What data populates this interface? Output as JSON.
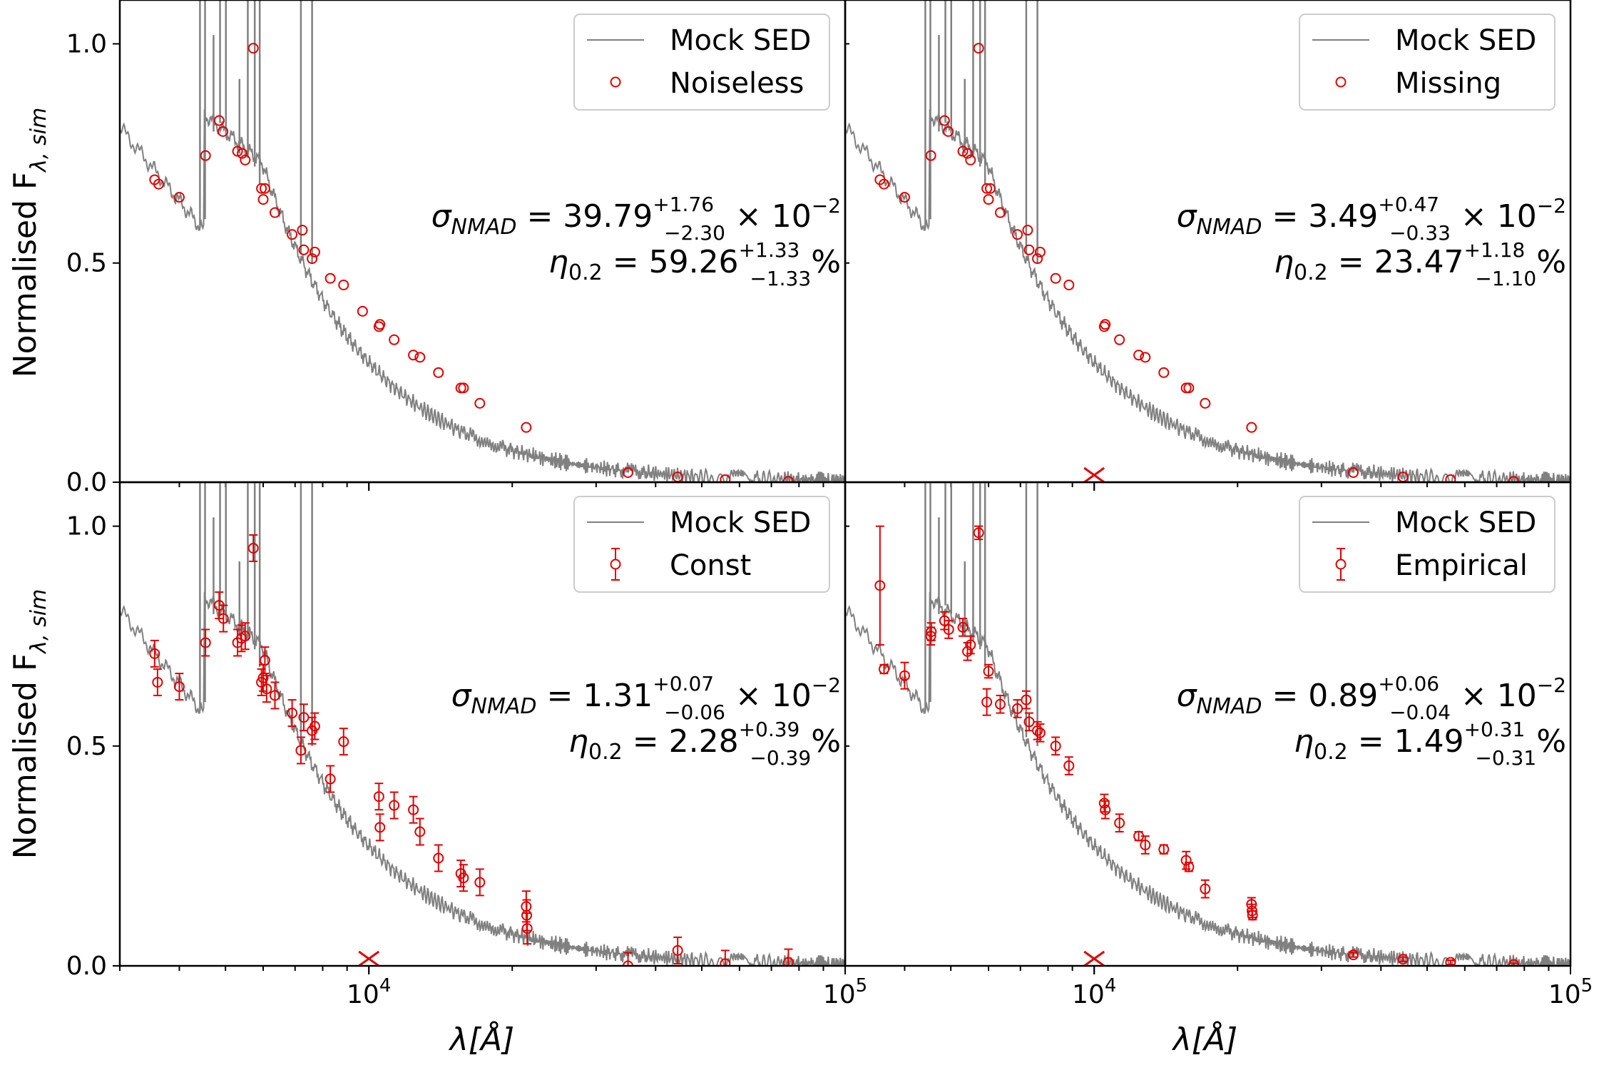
{
  "figure": {
    "ylabel_text": "Normalised F",
    "ylabel_sub": "λ, sim",
    "xlabel_text": "λ[Å]"
  },
  "colors": {
    "sed_line": "#808080",
    "points": "#e00000",
    "frame": "#000000",
    "legend_border": "#cccccc"
  },
  "chart_data": [
    {
      "type": "scatter",
      "panel": "top-left",
      "legend": [
        "Mock SED",
        "Noiseless"
      ],
      "legend_placement": "top-right",
      "errorbars": false,
      "xscale": "log",
      "xlim": [
        3000,
        100000
      ],
      "ylim": [
        0.0,
        1.1
      ],
      "yticks": [
        "0.0",
        "0.5",
        "1.0"
      ],
      "xticks": [],
      "stat": {
        "sigma_label": "σ",
        "sigma_sub": "NMAD",
        "sigma_val": "39.79",
        "sigma_sup": "+1.76",
        "sigma_sub2": "−2.30",
        "sigma_tail": "× 10",
        "sigma_exp": "−2",
        "eta_label": "η",
        "eta_sub": "0.2",
        "eta_val": "59.26",
        "eta_sup": "+1.33",
        "eta_sub2": "−1.33",
        "eta_tail": "%"
      },
      "missing_marker_x": null,
      "points": [
        {
          "x": 3550,
          "y": 0.69
        },
        {
          "x": 3620,
          "y": 0.68
        },
        {
          "x": 4000,
          "y": 0.65
        },
        {
          "x": 4540,
          "y": 0.745
        },
        {
          "x": 4850,
          "y": 0.825
        },
        {
          "x": 4940,
          "y": 0.8
        },
        {
          "x": 5300,
          "y": 0.755
        },
        {
          "x": 5420,
          "y": 0.75
        },
        {
          "x": 5500,
          "y": 0.735
        },
        {
          "x": 5720,
          "y": 0.99
        },
        {
          "x": 5950,
          "y": 0.67
        },
        {
          "x": 6000,
          "y": 0.645
        },
        {
          "x": 6050,
          "y": 0.67
        },
        {
          "x": 6350,
          "y": 0.615
        },
        {
          "x": 6900,
          "y": 0.565
        },
        {
          "x": 7250,
          "y": 0.575
        },
        {
          "x": 7300,
          "y": 0.53
        },
        {
          "x": 7600,
          "y": 0.51
        },
        {
          "x": 7700,
          "y": 0.525
        },
        {
          "x": 8300,
          "y": 0.465
        },
        {
          "x": 8850,
          "y": 0.45
        },
        {
          "x": 9700,
          "y": 0.39
        },
        {
          "x": 10500,
          "y": 0.355
        },
        {
          "x": 10550,
          "y": 0.36
        },
        {
          "x": 11300,
          "y": 0.325
        },
        {
          "x": 12400,
          "y": 0.29
        },
        {
          "x": 12800,
          "y": 0.285
        },
        {
          "x": 14000,
          "y": 0.25
        },
        {
          "x": 15600,
          "y": 0.215
        },
        {
          "x": 15800,
          "y": 0.215
        },
        {
          "x": 17100,
          "y": 0.18
        },
        {
          "x": 21400,
          "y": 0.125
        },
        {
          "x": 35000,
          "y": 0.022
        },
        {
          "x": 44500,
          "y": 0.012
        },
        {
          "x": 56000,
          "y": 0.006
        },
        {
          "x": 76000,
          "y": 0.002
        }
      ]
    },
    {
      "type": "scatter",
      "panel": "top-right",
      "legend": [
        "Mock SED",
        "Missing"
      ],
      "legend_placement": "top-right",
      "errorbars": false,
      "xscale": "log",
      "xlim": [
        3000,
        100000
      ],
      "ylim": [
        0.0,
        1.1
      ],
      "yticks": [],
      "xticks": [],
      "stat": {
        "sigma_label": "σ",
        "sigma_sub": "NMAD",
        "sigma_val": "3.49",
        "sigma_sup": "+0.47",
        "sigma_sub2": "−0.33",
        "sigma_tail": "× 10",
        "sigma_exp": "−2",
        "eta_label": "η",
        "eta_sub": "0.2",
        "eta_val": "23.47",
        "eta_sup": "+1.18",
        "eta_sub2": "−1.10",
        "eta_tail": "%"
      },
      "missing_marker_x": 10000,
      "points": [
        {
          "x": 3550,
          "y": 0.69
        },
        {
          "x": 3620,
          "y": 0.68
        },
        {
          "x": 4000,
          "y": 0.65
        },
        {
          "x": 4540,
          "y": 0.745
        },
        {
          "x": 4850,
          "y": 0.825
        },
        {
          "x": 4940,
          "y": 0.8
        },
        {
          "x": 5300,
          "y": 0.755
        },
        {
          "x": 5420,
          "y": 0.75
        },
        {
          "x": 5500,
          "y": 0.735
        },
        {
          "x": 5720,
          "y": 0.99
        },
        {
          "x": 5950,
          "y": 0.67
        },
        {
          "x": 6000,
          "y": 0.645
        },
        {
          "x": 6050,
          "y": 0.67
        },
        {
          "x": 6350,
          "y": 0.615
        },
        {
          "x": 6900,
          "y": 0.565
        },
        {
          "x": 7250,
          "y": 0.575
        },
        {
          "x": 7300,
          "y": 0.53
        },
        {
          "x": 7600,
          "y": 0.51
        },
        {
          "x": 7700,
          "y": 0.525
        },
        {
          "x": 8300,
          "y": 0.465
        },
        {
          "x": 8850,
          "y": 0.45
        },
        {
          "x": 10500,
          "y": 0.355
        },
        {
          "x": 10550,
          "y": 0.36
        },
        {
          "x": 11300,
          "y": 0.325
        },
        {
          "x": 12400,
          "y": 0.29
        },
        {
          "x": 12800,
          "y": 0.285
        },
        {
          "x": 14000,
          "y": 0.25
        },
        {
          "x": 15600,
          "y": 0.215
        },
        {
          "x": 15800,
          "y": 0.215
        },
        {
          "x": 17100,
          "y": 0.18
        },
        {
          "x": 21400,
          "y": 0.125
        },
        {
          "x": 35000,
          "y": 0.022
        },
        {
          "x": 44500,
          "y": 0.012
        },
        {
          "x": 56000,
          "y": 0.006
        },
        {
          "x": 76000,
          "y": 0.002
        }
      ]
    },
    {
      "type": "scatter",
      "panel": "bottom-left",
      "legend": [
        "Mock SED",
        "Const"
      ],
      "legend_placement": "top-right",
      "errorbars": true,
      "xscale": "log",
      "xlim": [
        3000,
        100000
      ],
      "ylim": [
        0.0,
        1.1
      ],
      "yticks": [
        "0.0",
        "0.5",
        "1.0"
      ],
      "xticks": [
        {
          "v": 10000,
          "base": "10",
          "exp": "4"
        },
        {
          "v": 100000,
          "base": "10",
          "exp": "5"
        }
      ],
      "stat": {
        "sigma_label": "σ",
        "sigma_sub": "NMAD",
        "sigma_val": "1.31",
        "sigma_sup": "+0.07",
        "sigma_sub2": "−0.06",
        "sigma_tail": "× 10",
        "sigma_exp": "−2",
        "eta_label": "η",
        "eta_sub": "0.2",
        "eta_val": "2.28",
        "eta_sup": "+0.39",
        "eta_sub2": "−0.39",
        "eta_tail": "%"
      },
      "missing_marker_x": 10000,
      "points": [
        {
          "x": 3550,
          "y": 0.71,
          "e": 0.03
        },
        {
          "x": 3600,
          "y": 0.645,
          "e": 0.03
        },
        {
          "x": 4000,
          "y": 0.635,
          "e": 0.03
        },
        {
          "x": 4540,
          "y": 0.735,
          "e": 0.03
        },
        {
          "x": 4850,
          "y": 0.82,
          "e": 0.03
        },
        {
          "x": 4950,
          "y": 0.79,
          "e": 0.03
        },
        {
          "x": 5300,
          "y": 0.735,
          "e": 0.03
        },
        {
          "x": 5400,
          "y": 0.745,
          "e": 0.03
        },
        {
          "x": 5500,
          "y": 0.75,
          "e": 0.03
        },
        {
          "x": 5720,
          "y": 0.95,
          "e": 0.03
        },
        {
          "x": 5950,
          "y": 0.645,
          "e": 0.03
        },
        {
          "x": 6000,
          "y": 0.655,
          "e": 0.03
        },
        {
          "x": 6050,
          "y": 0.695,
          "e": 0.03
        },
        {
          "x": 6100,
          "y": 0.63,
          "e": 0.03
        },
        {
          "x": 6350,
          "y": 0.615,
          "e": 0.03
        },
        {
          "x": 6900,
          "y": 0.575,
          "e": 0.03
        },
        {
          "x": 7200,
          "y": 0.49,
          "e": 0.03
        },
        {
          "x": 7300,
          "y": 0.565,
          "e": 0.03
        },
        {
          "x": 7600,
          "y": 0.535,
          "e": 0.03
        },
        {
          "x": 7700,
          "y": 0.545,
          "e": 0.03
        },
        {
          "x": 8300,
          "y": 0.425,
          "e": 0.03
        },
        {
          "x": 8850,
          "y": 0.51,
          "e": 0.03
        },
        {
          "x": 10500,
          "y": 0.385,
          "e": 0.03
        },
        {
          "x": 10550,
          "y": 0.315,
          "e": 0.03
        },
        {
          "x": 11300,
          "y": 0.365,
          "e": 0.03
        },
        {
          "x": 12400,
          "y": 0.355,
          "e": 0.03
        },
        {
          "x": 12800,
          "y": 0.305,
          "e": 0.03
        },
        {
          "x": 14000,
          "y": 0.245,
          "e": 0.03
        },
        {
          "x": 15600,
          "y": 0.21,
          "e": 0.03
        },
        {
          "x": 15800,
          "y": 0.2,
          "e": 0.03
        },
        {
          "x": 17100,
          "y": 0.19,
          "e": 0.03
        },
        {
          "x": 21400,
          "y": 0.135,
          "e": 0.035
        },
        {
          "x": 21450,
          "y": 0.115,
          "e": 0.035
        },
        {
          "x": 21500,
          "y": 0.085,
          "e": 0.035
        },
        {
          "x": 35000,
          "y": 0.0,
          "e": 0.03
        },
        {
          "x": 44500,
          "y": 0.035,
          "e": 0.03
        },
        {
          "x": 56000,
          "y": 0.005,
          "e": 0.03
        },
        {
          "x": 76000,
          "y": 0.008,
          "e": 0.03
        }
      ]
    },
    {
      "type": "scatter",
      "panel": "bottom-right",
      "legend": [
        "Mock SED",
        "Empirical"
      ],
      "legend_placement": "top-right",
      "errorbars": true,
      "xscale": "log",
      "xlim": [
        3000,
        100000
      ],
      "ylim": [
        0.0,
        1.1
      ],
      "yticks": [],
      "xticks": [
        {
          "v": 10000,
          "base": "10",
          "exp": "4"
        },
        {
          "v": 100000,
          "base": "10",
          "exp": "5"
        }
      ],
      "stat": {
        "sigma_label": "σ",
        "sigma_sub": "NMAD",
        "sigma_val": "0.89",
        "sigma_sup": "+0.06",
        "sigma_sub2": "−0.04",
        "sigma_tail": "× 10",
        "sigma_exp": "−2",
        "eta_label": "η",
        "eta_sub": "0.2",
        "eta_val": "1.49",
        "eta_sup": "+0.31",
        "eta_sub2": "−0.31",
        "eta_tail": "%"
      },
      "missing_marker_x": 10000,
      "points": [
        {
          "x": 3550,
          "y": 0.865,
          "e": 0.135
        },
        {
          "x": 3620,
          "y": 0.675,
          "e": 0.01
        },
        {
          "x": 4000,
          "y": 0.66,
          "e": 0.03
        },
        {
          "x": 4540,
          "y": 0.75,
          "e": 0.02
        },
        {
          "x": 4550,
          "y": 0.76,
          "e": 0.02
        },
        {
          "x": 4850,
          "y": 0.785,
          "e": 0.02
        },
        {
          "x": 4950,
          "y": 0.765,
          "e": 0.02
        },
        {
          "x": 5300,
          "y": 0.77,
          "e": 0.02
        },
        {
          "x": 5420,
          "y": 0.715,
          "e": 0.02
        },
        {
          "x": 5500,
          "y": 0.73,
          "e": 0.02
        },
        {
          "x": 5720,
          "y": 0.985,
          "e": 0.015
        },
        {
          "x": 5950,
          "y": 0.6,
          "e": 0.03
        },
        {
          "x": 6000,
          "y": 0.67,
          "e": 0.015
        },
        {
          "x": 6350,
          "y": 0.595,
          "e": 0.02
        },
        {
          "x": 6900,
          "y": 0.585,
          "e": 0.02
        },
        {
          "x": 7200,
          "y": 0.605,
          "e": 0.02
        },
        {
          "x": 7300,
          "y": 0.555,
          "e": 0.02
        },
        {
          "x": 7600,
          "y": 0.535,
          "e": 0.02
        },
        {
          "x": 7700,
          "y": 0.53,
          "e": 0.02
        },
        {
          "x": 8300,
          "y": 0.5,
          "e": 0.02
        },
        {
          "x": 8850,
          "y": 0.455,
          "e": 0.02
        },
        {
          "x": 10500,
          "y": 0.37,
          "e": 0.02
        },
        {
          "x": 10550,
          "y": 0.355,
          "e": 0.02
        },
        {
          "x": 11300,
          "y": 0.325,
          "e": 0.02
        },
        {
          "x": 12400,
          "y": 0.295,
          "e": 0.01
        },
        {
          "x": 12800,
          "y": 0.275,
          "e": 0.02
        },
        {
          "x": 14000,
          "y": 0.265,
          "e": 0.01
        },
        {
          "x": 15600,
          "y": 0.24,
          "e": 0.02
        },
        {
          "x": 15800,
          "y": 0.225,
          "e": 0.01
        },
        {
          "x": 17100,
          "y": 0.175,
          "e": 0.02
        },
        {
          "x": 21400,
          "y": 0.14,
          "e": 0.015
        },
        {
          "x": 21450,
          "y": 0.125,
          "e": 0.015
        },
        {
          "x": 21500,
          "y": 0.115,
          "e": 0.01
        },
        {
          "x": 35000,
          "y": 0.025,
          "e": 0.005
        },
        {
          "x": 44500,
          "y": 0.015,
          "e": 0.005
        },
        {
          "x": 56000,
          "y": 0.008,
          "e": 0.005
        },
        {
          "x": 76000,
          "y": 0.003,
          "e": 0.003
        }
      ]
    }
  ]
}
